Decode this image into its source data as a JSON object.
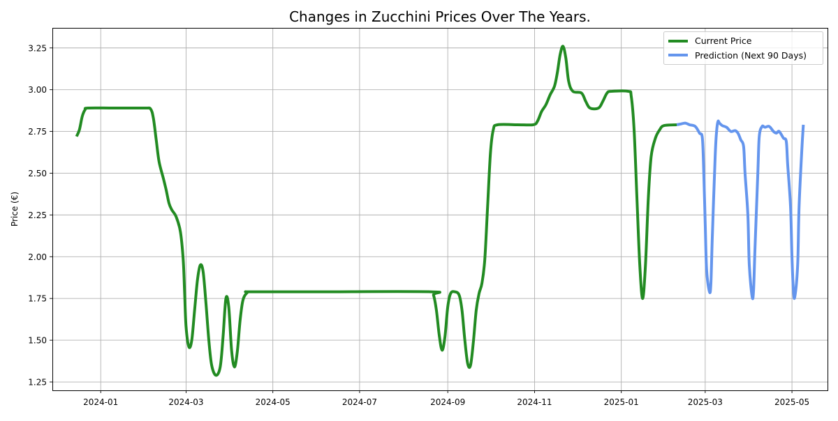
{
  "chart_data": {
    "type": "line",
    "title": "Changes in Zucchini Prices Over The Years.",
    "xlabel": "",
    "ylabel": "Price (€)",
    "grid": true,
    "legend_position": "top-right",
    "xlim": [
      "2023-11-28",
      "2025-05-26"
    ],
    "ylim": [
      1.2,
      3.37
    ],
    "x_ticks": [
      "2024-01-01",
      "2024-03-01",
      "2024-05-01",
      "2024-07-01",
      "2024-09-01",
      "2024-11-01",
      "2025-01-01",
      "2025-03-01",
      "2025-05-01"
    ],
    "x_tick_labels": [
      "2024-01",
      "2024-03",
      "2024-05",
      "2024-07",
      "2024-09",
      "2024-11",
      "2025-01",
      "2025-03",
      "2025-05"
    ],
    "y_ticks": [
      1.25,
      1.5,
      1.75,
      2.0,
      2.25,
      2.5,
      2.75,
      3.0,
      3.25
    ],
    "y_tick_labels": [
      "1.25",
      "1.50",
      "1.75",
      "2.00",
      "2.25",
      "2.50",
      "2.75",
      "3.00",
      "3.25"
    ],
    "series": [
      {
        "name": "Current Price",
        "color": "#228b22",
        "points": [
          [
            "2023-12-15",
            2.72
          ],
          [
            "2023-12-17",
            2.76
          ],
          [
            "2023-12-19",
            2.84
          ],
          [
            "2023-12-21",
            2.88
          ],
          [
            "2023-12-23",
            2.89
          ],
          [
            "2024-01-10",
            2.89
          ],
          [
            "2024-02-01",
            2.89
          ],
          [
            "2024-02-05",
            2.885
          ],
          [
            "2024-02-07",
            2.83
          ],
          [
            "2024-02-09",
            2.7
          ],
          [
            "2024-02-11",
            2.57
          ],
          [
            "2024-02-14",
            2.47
          ],
          [
            "2024-02-16",
            2.4
          ],
          [
            "2024-02-18",
            2.32
          ],
          [
            "2024-02-20",
            2.28
          ],
          [
            "2024-02-23",
            2.24
          ],
          [
            "2024-02-26",
            2.15
          ],
          [
            "2024-02-28",
            1.98
          ],
          [
            "2024-02-29",
            1.78
          ],
          [
            "2024-03-01",
            1.58
          ],
          [
            "2024-03-03",
            1.46
          ],
          [
            "2024-03-05",
            1.5
          ],
          [
            "2024-03-07",
            1.68
          ],
          [
            "2024-03-09",
            1.86
          ],
          [
            "2024-03-11",
            1.95
          ],
          [
            "2024-03-13",
            1.91
          ],
          [
            "2024-03-15",
            1.72
          ],
          [
            "2024-03-17",
            1.5
          ],
          [
            "2024-03-19",
            1.35
          ],
          [
            "2024-03-22",
            1.29
          ],
          [
            "2024-03-25",
            1.34
          ],
          [
            "2024-03-27",
            1.52
          ],
          [
            "2024-03-29",
            1.75
          ],
          [
            "2024-03-31",
            1.7
          ],
          [
            "2024-04-02",
            1.44
          ],
          [
            "2024-04-04",
            1.34
          ],
          [
            "2024-04-06",
            1.43
          ],
          [
            "2024-04-08",
            1.62
          ],
          [
            "2024-04-10",
            1.74
          ],
          [
            "2024-04-13",
            1.785
          ],
          [
            "2024-04-16",
            1.79
          ],
          [
            "2024-06-01",
            1.79
          ],
          [
            "2024-08-20",
            1.79
          ],
          [
            "2024-08-22",
            1.77
          ],
          [
            "2024-08-24",
            1.68
          ],
          [
            "2024-08-26",
            1.53
          ],
          [
            "2024-08-28",
            1.44
          ],
          [
            "2024-08-30",
            1.52
          ],
          [
            "2024-09-01",
            1.7
          ],
          [
            "2024-09-03",
            1.78
          ],
          [
            "2024-09-06",
            1.79
          ],
          [
            "2024-09-09",
            1.77
          ],
          [
            "2024-09-11",
            1.68
          ],
          [
            "2024-09-13",
            1.5
          ],
          [
            "2024-09-15",
            1.36
          ],
          [
            "2024-09-17",
            1.35
          ],
          [
            "2024-09-19",
            1.49
          ],
          [
            "2024-09-21",
            1.68
          ],
          [
            "2024-09-23",
            1.78
          ],
          [
            "2024-09-25",
            1.84
          ],
          [
            "2024-09-27",
            1.98
          ],
          [
            "2024-09-29",
            2.3
          ],
          [
            "2024-10-01",
            2.62
          ],
          [
            "2024-10-03",
            2.76
          ],
          [
            "2024-10-06",
            2.79
          ],
          [
            "2024-10-20",
            2.79
          ],
          [
            "2024-10-31",
            2.79
          ],
          [
            "2024-11-03",
            2.81
          ],
          [
            "2024-11-06",
            2.87
          ],
          [
            "2024-11-09",
            2.91
          ],
          [
            "2024-11-12",
            2.97
          ],
          [
            "2024-11-15",
            3.02
          ],
          [
            "2024-11-17",
            3.1
          ],
          [
            "2024-11-19",
            3.21
          ],
          [
            "2024-11-21",
            3.26
          ],
          [
            "2024-11-23",
            3.19
          ],
          [
            "2024-11-25",
            3.05
          ],
          [
            "2024-11-28",
            2.99
          ],
          [
            "2024-12-04",
            2.98
          ],
          [
            "2024-12-07",
            2.93
          ],
          [
            "2024-12-10",
            2.89
          ],
          [
            "2024-12-16",
            2.89
          ],
          [
            "2024-12-19",
            2.93
          ],
          [
            "2024-12-22",
            2.98
          ],
          [
            "2024-12-25",
            2.99
          ],
          [
            "2025-01-06",
            2.99
          ],
          [
            "2025-01-08",
            2.96
          ],
          [
            "2025-01-10",
            2.76
          ],
          [
            "2025-01-12",
            2.35
          ],
          [
            "2025-01-14",
            1.95
          ],
          [
            "2025-01-16",
            1.75
          ],
          [
            "2025-01-18",
            1.95
          ],
          [
            "2025-01-20",
            2.35
          ],
          [
            "2025-01-22",
            2.6
          ],
          [
            "2025-01-25",
            2.71
          ],
          [
            "2025-01-28",
            2.76
          ],
          [
            "2025-01-31",
            2.785
          ],
          [
            "2025-02-09",
            2.79
          ]
        ]
      },
      {
        "name": "Prediction (Next 90 Days)",
        "color": "#6495ed",
        "points": [
          [
            "2025-02-09",
            2.79
          ],
          [
            "2025-02-12",
            2.795
          ],
          [
            "2025-02-15",
            2.8
          ],
          [
            "2025-02-18",
            2.79
          ],
          [
            "2025-02-22",
            2.78
          ],
          [
            "2025-02-25",
            2.74
          ],
          [
            "2025-02-27",
            2.71
          ],
          [
            "2025-02-28",
            2.5
          ],
          [
            "2025-03-01",
            2.2
          ],
          [
            "2025-03-02",
            1.92
          ],
          [
            "2025-03-04",
            1.79
          ],
          [
            "2025-03-05",
            1.84
          ],
          [
            "2025-03-06",
            2.12
          ],
          [
            "2025-03-08",
            2.6
          ],
          [
            "2025-03-09",
            2.75
          ],
          [
            "2025-03-10",
            2.81
          ],
          [
            "2025-03-11",
            2.8
          ],
          [
            "2025-03-13",
            2.785
          ],
          [
            "2025-03-16",
            2.775
          ],
          [
            "2025-03-19",
            2.75
          ],
          [
            "2025-03-22",
            2.755
          ],
          [
            "2025-03-24",
            2.74
          ],
          [
            "2025-03-26",
            2.7
          ],
          [
            "2025-03-28",
            2.66
          ],
          [
            "2025-03-29",
            2.5
          ],
          [
            "2025-03-31",
            2.25
          ],
          [
            "2025-04-01",
            1.95
          ],
          [
            "2025-04-03",
            1.76
          ],
          [
            "2025-04-04",
            1.8
          ],
          [
            "2025-04-05",
            2.05
          ],
          [
            "2025-04-07",
            2.5
          ],
          [
            "2025-04-08",
            2.72
          ],
          [
            "2025-04-10",
            2.78
          ],
          [
            "2025-04-12",
            2.775
          ],
          [
            "2025-04-15",
            2.78
          ],
          [
            "2025-04-18",
            2.75
          ],
          [
            "2025-04-20",
            2.74
          ],
          [
            "2025-04-22",
            2.75
          ],
          [
            "2025-04-25",
            2.71
          ],
          [
            "2025-04-27",
            2.69
          ],
          [
            "2025-04-28",
            2.55
          ],
          [
            "2025-04-30",
            2.3
          ],
          [
            "2025-05-01",
            2.0
          ],
          [
            "2025-05-02",
            1.8
          ],
          [
            "2025-05-03",
            1.76
          ],
          [
            "2025-05-05",
            1.95
          ],
          [
            "2025-05-06",
            2.3
          ],
          [
            "2025-05-08",
            2.65
          ],
          [
            "2025-05-09",
            2.79
          ]
        ]
      }
    ]
  }
}
